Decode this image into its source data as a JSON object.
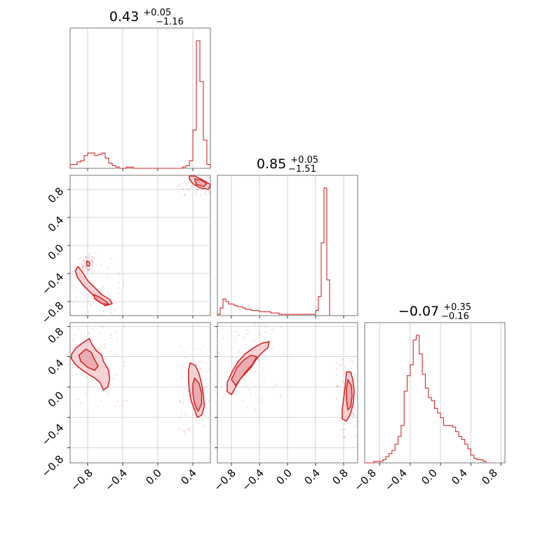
{
  "chart_data": {
    "type": "corner",
    "line_color": "#d62728",
    "fill_color": "#f3c6c8",
    "params": [
      {
        "value": "0.43",
        "plus": "+0.05",
        "minus": "−1.16",
        "range": [
          -1.0,
          0.6
        ]
      },
      {
        "value": "0.85",
        "plus": "+0.05",
        "minus": "−1.51",
        "range": [
          -1.0,
          1.0
        ]
      },
      {
        "value": "−0.07",
        "plus": "+0.35",
        "minus": "−0.16",
        "range": [
          -1.0,
          0.85
        ]
      }
    ],
    "tick_labels": {
      "p0_x": [
        "−0.8",
        "−0.4",
        "0.0",
        "0.4"
      ],
      "p1_x": [
        "−0.8",
        "−0.4",
        "0.0",
        "0.4",
        "0.8"
      ],
      "p2_x": [
        "−0.8",
        "−0.4",
        "0.0",
        "0.4",
        "0.8"
      ],
      "p1_y": [
        "0.8",
        "0.4",
        "0.0",
        "−0.4",
        "−0.8"
      ],
      "p2_y": [
        "0.8",
        "0.4",
        "0.0",
        "−0.4",
        "−0.8"
      ]
    },
    "histograms": [
      {
        "param": 0,
        "bin_start": -1.0,
        "bin_width": 0.04,
        "values": [
          3,
          3,
          5,
          6,
          10,
          12,
          12,
          10,
          11,
          12,
          8,
          4,
          2,
          1,
          0,
          0,
          1,
          1,
          0,
          0,
          0,
          0,
          0,
          0,
          0,
          0,
          0,
          0,
          0,
          0,
          0,
          0,
          1,
          2,
          6,
          30,
          100,
          68,
          22,
          3
        ]
      },
      {
        "param": 1,
        "bin_start": -1.0,
        "bin_width": 0.04,
        "values": [
          1,
          6,
          13,
          11,
          9,
          9,
          8,
          7,
          7,
          6,
          5,
          5,
          4,
          4,
          4,
          3,
          3,
          3,
          3,
          2,
          2,
          2,
          1,
          1,
          1,
          1,
          1,
          1,
          1,
          1,
          1,
          1,
          1,
          1,
          1,
          4,
          15,
          57,
          100,
          28
        ]
      },
      {
        "param": 2,
        "bin_start": -1.0,
        "bin_width": 0.04,
        "values": [
          0,
          0,
          0,
          1,
          1,
          1,
          2,
          4,
          6,
          8,
          12,
          17,
          24,
          46,
          56,
          63,
          79,
          82,
          70,
          57,
          48,
          42,
          40,
          35,
          32,
          29,
          24,
          24,
          24,
          23,
          20,
          17,
          15,
          12,
          9,
          5,
          3,
          2,
          2,
          1
        ]
      }
    ],
    "contour_panels": [
      {
        "x_param": 0,
        "y_param": 1,
        "regions": [
          {
            "level": "outer",
            "points": [
              [
                0.36,
                0.99
              ],
              [
                0.42,
                0.99
              ],
              [
                0.52,
                0.93
              ],
              [
                0.6,
                0.87
              ],
              [
                0.58,
                0.8
              ],
              [
                0.48,
                0.82
              ],
              [
                0.4,
                0.88
              ],
              [
                0.36,
                0.95
              ]
            ]
          },
          {
            "level": "inner",
            "points": [
              [
                0.42,
                0.95
              ],
              [
                0.5,
                0.93
              ],
              [
                0.56,
                0.88
              ],
              [
                0.52,
                0.84
              ],
              [
                0.44,
                0.87
              ]
            ]
          },
          {
            "level": "outer",
            "points": [
              [
                -0.91,
                -0.3
              ],
              [
                -0.86,
                -0.38
              ],
              [
                -0.8,
                -0.5
              ],
              [
                -0.72,
                -0.6
              ],
              [
                -0.64,
                -0.7
              ],
              [
                -0.55,
                -0.77
              ],
              [
                -0.52,
                -0.83
              ],
              [
                -0.6,
                -0.86
              ],
              [
                -0.68,
                -0.78
              ],
              [
                -0.76,
                -0.68
              ],
              [
                -0.85,
                -0.57
              ],
              [
                -0.92,
                -0.45
              ],
              [
                -0.94,
                -0.36
              ]
            ]
          },
          {
            "level": "inner",
            "points": [
              [
                -0.73,
                -0.7
              ],
              [
                -0.66,
                -0.74
              ],
              [
                -0.59,
                -0.8
              ],
              [
                -0.56,
                -0.84
              ],
              [
                -0.64,
                -0.83
              ],
              [
                -0.72,
                -0.76
              ]
            ]
          },
          {
            "level": "outer",
            "points": [
              [
                -0.81,
                -0.22
              ],
              [
                -0.78,
                -0.24
              ],
              [
                -0.78,
                -0.29
              ],
              [
                -0.81,
                -0.29
              ]
            ]
          }
        ],
        "scatter_seed": 7
      },
      {
        "x_param": 0,
        "y_param": 2,
        "regions": [
          {
            "level": "outer",
            "points": [
              [
                -0.98,
                0.44
              ],
              [
                -0.93,
                0.52
              ],
              [
                -0.86,
                0.58
              ],
              [
                -0.78,
                0.64
              ],
              [
                -0.75,
                0.56
              ],
              [
                -0.7,
                0.48
              ],
              [
                -0.64,
                0.42
              ],
              [
                -0.62,
                0.34
              ],
              [
                -0.56,
                0.22
              ],
              [
                -0.55,
                0.1
              ],
              [
                -0.57,
                0.0
              ],
              [
                -0.62,
                -0.04
              ],
              [
                -0.66,
                0.06
              ],
              [
                -0.72,
                0.12
              ],
              [
                -0.78,
                0.16
              ],
              [
                -0.86,
                0.22
              ],
              [
                -0.94,
                0.3
              ],
              [
                -0.99,
                0.38
              ]
            ]
          },
          {
            "level": "inner",
            "points": [
              [
                -0.9,
                0.42
              ],
              [
                -0.82,
                0.5
              ],
              [
                -0.76,
                0.46
              ],
              [
                -0.72,
                0.36
              ],
              [
                -0.68,
                0.28
              ],
              [
                -0.72,
                0.22
              ],
              [
                -0.8,
                0.26
              ],
              [
                -0.88,
                0.34
              ]
            ]
          },
          {
            "level": "outer",
            "points": [
              [
                0.37,
                0.32
              ],
              [
                0.43,
                0.28
              ],
              [
                0.47,
                0.18
              ],
              [
                0.5,
                0.04
              ],
              [
                0.52,
                -0.1
              ],
              [
                0.53,
                -0.25
              ],
              [
                0.5,
                -0.37
              ],
              [
                0.45,
                -0.4
              ],
              [
                0.42,
                -0.3
              ],
              [
                0.38,
                -0.18
              ],
              [
                0.36,
                -0.05
              ],
              [
                0.35,
                0.1
              ],
              [
                0.35,
                0.22
              ]
            ]
          },
          {
            "level": "inner",
            "points": [
              [
                0.42,
                0.12
              ],
              [
                0.47,
                0.05
              ],
              [
                0.5,
                -0.08
              ],
              [
                0.5,
                -0.22
              ],
              [
                0.46,
                -0.32
              ],
              [
                0.42,
                -0.22
              ],
              [
                0.4,
                -0.08
              ],
              [
                0.4,
                0.04
              ]
            ]
          }
        ],
        "scatter_seed": 11
      },
      {
        "x_param": 1,
        "y_param": 2,
        "regions": [
          {
            "level": "outer",
            "points": [
              [
                -0.86,
                0.06
              ],
              [
                -0.78,
                0.22
              ],
              [
                -0.7,
                0.34
              ],
              [
                -0.6,
                0.44
              ],
              [
                -0.48,
                0.52
              ],
              [
                -0.36,
                0.58
              ],
              [
                -0.26,
                0.6
              ],
              [
                -0.28,
                0.52
              ],
              [
                -0.38,
                0.44
              ],
              [
                -0.45,
                0.36
              ],
              [
                -0.52,
                0.26
              ],
              [
                -0.6,
                0.18
              ],
              [
                -0.68,
                0.1
              ],
              [
                -0.74,
                0.0
              ],
              [
                -0.8,
                -0.1
              ],
              [
                -0.86,
                -0.06
              ]
            ]
          },
          {
            "level": "inner",
            "points": [
              [
                -0.8,
                0.1
              ],
              [
                -0.72,
                0.26
              ],
              [
                -0.62,
                0.36
              ],
              [
                -0.52,
                0.42
              ],
              [
                -0.44,
                0.4
              ],
              [
                -0.5,
                0.3
              ],
              [
                -0.58,
                0.22
              ],
              [
                -0.66,
                0.12
              ],
              [
                -0.74,
                0.02
              ]
            ]
          },
          {
            "level": "outer",
            "points": [
              [
                0.84,
                0.2
              ],
              [
                0.9,
                0.2
              ],
              [
                0.93,
                0.1
              ],
              [
                0.95,
                -0.05
              ],
              [
                0.94,
                -0.2
              ],
              [
                0.9,
                -0.35
              ],
              [
                0.84,
                -0.45
              ],
              [
                0.78,
                -0.42
              ],
              [
                0.78,
                -0.3
              ],
              [
                0.8,
                -0.15
              ],
              [
                0.82,
                0.0
              ],
              [
                0.83,
                0.1
              ]
            ]
          },
          {
            "level": "inner",
            "points": [
              [
                0.86,
                0.1
              ],
              [
                0.91,
                0.02
              ],
              [
                0.92,
                -0.12
              ],
              [
                0.9,
                -0.26
              ],
              [
                0.86,
                -0.3
              ],
              [
                0.84,
                -0.16
              ],
              [
                0.84,
                -0.02
              ]
            ]
          }
        ],
        "scatter_seed": 23
      }
    ]
  }
}
